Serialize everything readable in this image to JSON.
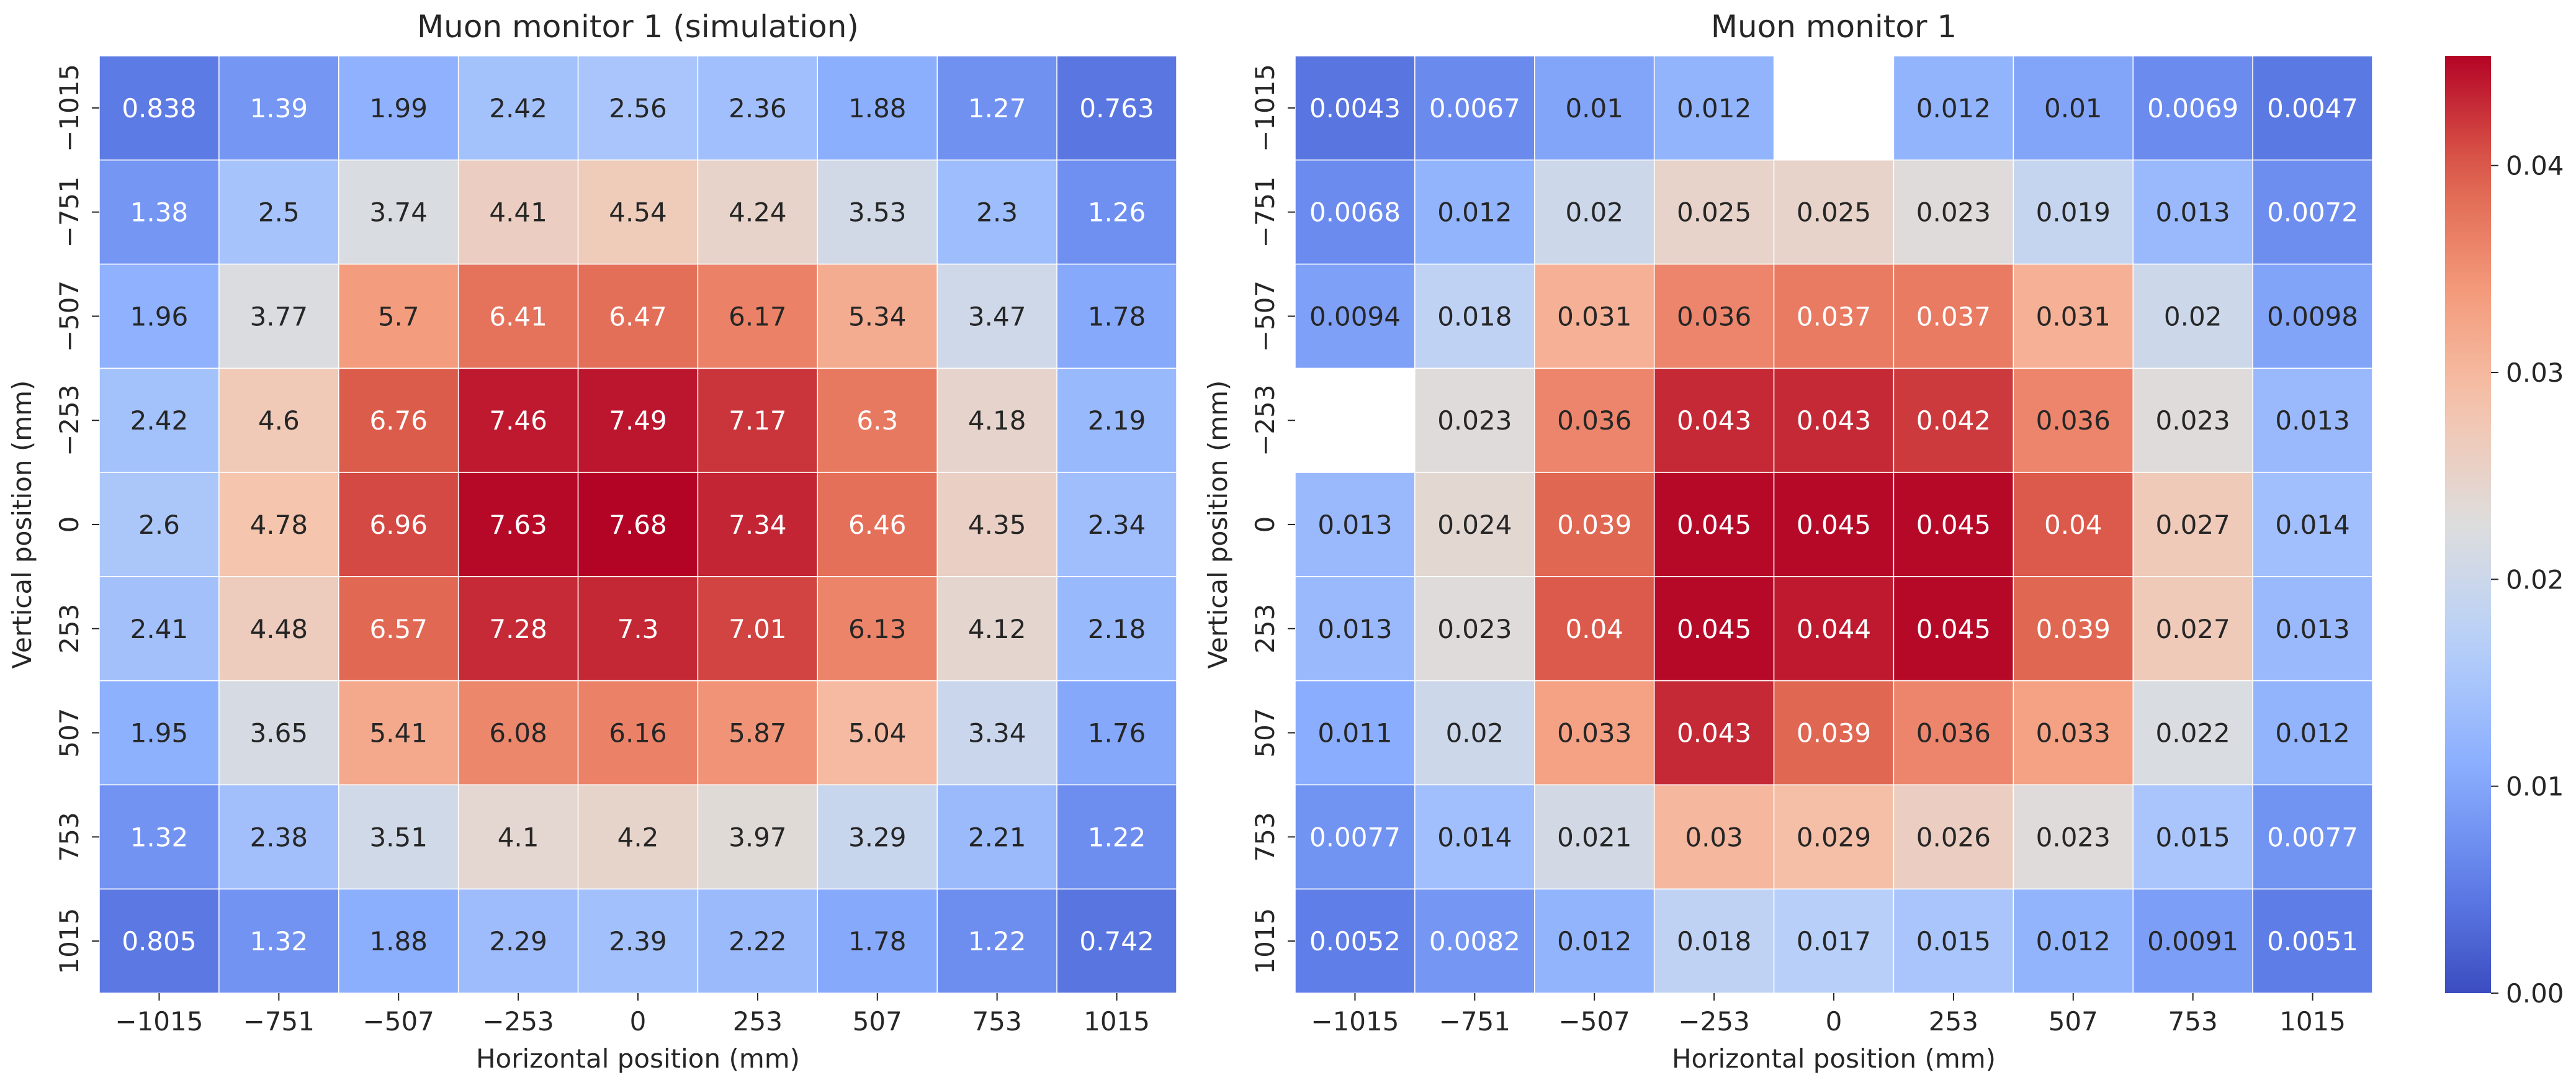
{
  "chart_data": [
    {
      "type": "heatmap",
      "title": "Muon monitor 1 (simulation)",
      "xlabel": "Horizontal position (mm)",
      "ylabel": "Vertical position (mm)",
      "x": [
        "−1015",
        "−751",
        "−507",
        "−253",
        "0",
        "253",
        "507",
        "753",
        "1015"
      ],
      "y": [
        "−1015",
        "−751",
        "−507",
        "−253",
        "0",
        "253",
        "507",
        "753",
        "1015"
      ],
      "values": [
        [
          "0.838",
          "1.39",
          "1.99",
          "2.42",
          "2.56",
          "2.36",
          "1.88",
          "1.27",
          "0.763"
        ],
        [
          "1.38",
          "2.5",
          "3.74",
          "4.41",
          "4.54",
          "4.24",
          "3.53",
          "2.3",
          "1.26"
        ],
        [
          "1.96",
          "3.77",
          "5.7",
          "6.41",
          "6.47",
          "6.17",
          "5.34",
          "3.47",
          "1.78"
        ],
        [
          "2.42",
          "4.6",
          "6.76",
          "7.46",
          "7.49",
          "7.17",
          "6.3",
          "4.18",
          "2.19"
        ],
        [
          "2.6",
          "4.78",
          "6.96",
          "7.63",
          "7.68",
          "7.34",
          "6.46",
          "4.35",
          "2.34"
        ],
        [
          "2.41",
          "4.48",
          "6.57",
          "7.28",
          "7.3",
          "7.01",
          "6.13",
          "4.12",
          "2.18"
        ],
        [
          "1.95",
          "3.65",
          "5.41",
          "6.08",
          "6.16",
          "5.87",
          "5.04",
          "3.34",
          "1.76"
        ],
        [
          "1.32",
          "2.38",
          "3.51",
          "4.1",
          "4.2",
          "3.97",
          "3.29",
          "2.21",
          "1.22"
        ],
        [
          "0.805",
          "1.32",
          "1.88",
          "2.29",
          "2.39",
          "2.22",
          "1.78",
          "1.22",
          "0.742"
        ]
      ],
      "colormap": "coolwarm",
      "vmin": 0,
      "vmax": 7.68,
      "colorbar": false
    },
    {
      "type": "heatmap",
      "title": "Muon monitor 1",
      "xlabel": "Horizontal position (mm)",
      "ylabel": "Vertical position (mm)",
      "x": [
        "−1015",
        "−751",
        "−507",
        "−253",
        "0",
        "253",
        "507",
        "753",
        "1015"
      ],
      "y": [
        "−1015",
        "−751",
        "−507",
        "−253",
        "0",
        "253",
        "507",
        "753",
        "1015"
      ],
      "values": [
        [
          "0.0043",
          "0.0067",
          "0.01",
          "0.012",
          null,
          "0.012",
          "0.01",
          "0.0069",
          "0.0047"
        ],
        [
          "0.0068",
          "0.012",
          "0.02",
          "0.025",
          "0.025",
          "0.023",
          "0.019",
          "0.013",
          "0.0072"
        ],
        [
          "0.0094",
          "0.018",
          "0.031",
          "0.036",
          "0.037",
          "0.037",
          "0.031",
          "0.02",
          "0.0098"
        ],
        [
          null,
          "0.023",
          "0.036",
          "0.043",
          "0.043",
          "0.042",
          "0.036",
          "0.023",
          "0.013"
        ],
        [
          "0.013",
          "0.024",
          "0.039",
          "0.045",
          "0.045",
          "0.045",
          "0.04",
          "0.027",
          "0.014"
        ],
        [
          "0.013",
          "0.023",
          "0.04",
          "0.045",
          "0.044",
          "0.045",
          "0.039",
          "0.027",
          "0.013"
        ],
        [
          "0.011",
          "0.02",
          "0.033",
          "0.043",
          "0.039",
          "0.036",
          "0.033",
          "0.022",
          "0.012"
        ],
        [
          "0.0077",
          "0.014",
          "0.021",
          "0.03",
          "0.029",
          "0.026",
          "0.023",
          "0.015",
          "0.0077"
        ],
        [
          "0.0052",
          "0.0082",
          "0.012",
          "0.018",
          "0.017",
          "0.015",
          "0.012",
          "0.0091",
          "0.0051"
        ]
      ],
      "colormap": "coolwarm",
      "vmin": 0,
      "vmax": 0.0453,
      "colorbar": true,
      "colorbar_ticks": [
        "0.00",
        "0.01",
        "0.02",
        "0.03",
        "0.04"
      ]
    }
  ]
}
